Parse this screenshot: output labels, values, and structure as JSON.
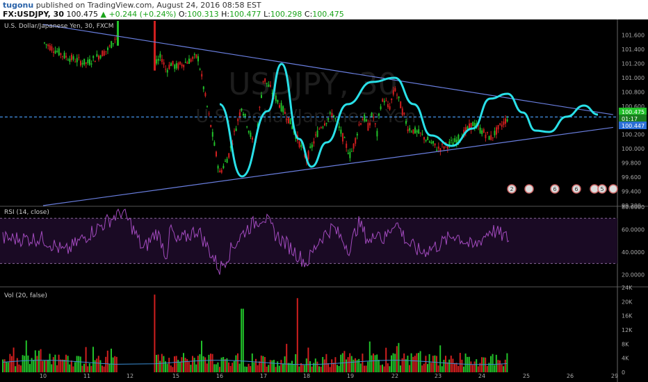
{
  "header": {
    "author": "tugonu",
    "published": "published on TradingView.com, August 24, 2016 08:58 EST",
    "symbol": "FX:USDJPY, 30",
    "last": "100.475",
    "change": "▲ +0.244 (+0.24%)",
    "open_label": "O:",
    "open": "100.313",
    "high_label": "H:",
    "high": "100.477",
    "low_label": "L:",
    "low": "100.298",
    "close_label": "C:",
    "close": "100.475"
  },
  "price_pane": {
    "title": "U.S. Dollar/Japanese Yen, 30, FXCM",
    "watermark_symbol": "USDJPY, 30",
    "watermark_name": "U.S. Dollar/Japanese Yen",
    "price_badge": "100.475",
    "countdown_badge": "01:17",
    "dashed_badge": "100.447",
    "badge_color": "#22c22a"
  },
  "rsi_pane": {
    "title": "RSI (14, close)"
  },
  "vol_pane": {
    "title": "Vol (20, false)"
  },
  "colors": {
    "up": "#22c22a",
    "down": "#d01f1f",
    "trendline": "#6a7fe0",
    "wave": "#29e0e8",
    "rsi": "#a34bbf",
    "vol_ma": "#3b8fd6"
  },
  "chart_data": [
    {
      "type": "candlestick",
      "title": "U.S. Dollar/Japanese Yen, 30, FXCM",
      "ylim": [
        99.2,
        101.8
      ],
      "y_ticks": [
        "101.600",
        "101.400",
        "101.200",
        "101.000",
        "100.800",
        "100.600",
        "100.400",
        "100.200",
        "100.000",
        "99.800",
        "99.600",
        "99.400",
        "99.200"
      ],
      "x_ticks": [
        "10",
        "11",
        "12",
        "15",
        "16",
        "17",
        "18",
        "19",
        "22",
        "23",
        "24",
        "25",
        "26",
        "29"
      ],
      "path_points_x": [
        10,
        10.5,
        11,
        11.5,
        11.8,
        12.5,
        12.7,
        13,
        13.5,
        14,
        14.5,
        15,
        15.5,
        16,
        16.2,
        16.5,
        16.8,
        17,
        17.3,
        17.6,
        18,
        18.3,
        18.6,
        19,
        19.3,
        19.6,
        19.9,
        20.2,
        20.5,
        20.8,
        21,
        21.3,
        21.6,
        22,
        22.3,
        22.6,
        23,
        23.4,
        23.8,
        24.2,
        24.6,
        24.9,
        25.2,
        25.5,
        25.8,
        26.2,
        26.5
      ],
      "path_points_close": [
        101.5,
        101.3,
        101.2,
        101.4,
        101.7,
        101.25,
        101.05,
        101.2,
        101.3,
        101.1,
        101.2,
        101.15,
        101.3,
        99.65,
        99.9,
        100.6,
        100.0,
        101.0,
        100.7,
        100.4,
        99.85,
        100.3,
        100.5,
        99.9,
        100.1,
        100.35,
        100.45,
        100.3,
        100.5,
        100.2,
        100.6,
        100.7,
        100.55,
        100.85,
        100.3,
        100.2,
        100.0,
        100.1,
        100.35,
        100.15,
        100.45,
        100.2,
        100.3,
        100.35,
        100.15,
        100.4,
        100.475
      ],
      "trendlines": [
        {
          "name": "upper",
          "points": [
            [
              10,
              101.75
            ],
            [
              28.9,
              100.48
            ]
          ]
        },
        {
          "name": "lower",
          "points": [
            [
              10,
              99.2
            ],
            [
              28.9,
              100.3
            ]
          ]
        },
        {
          "name": "dashed",
          "points": [
            [
              10,
              100.447
            ],
            [
              29,
              100.447
            ]
          ]
        }
      ],
      "events": [
        "2",
        "",
        "6",
        "6",
        "",
        "5",
        ""
      ]
    },
    {
      "type": "line",
      "title": "RSI (14, close)",
      "ylim": [
        10,
        80
      ],
      "y_ticks": [
        "80.0000",
        "60.0000",
        "40.0000",
        "20.0000"
      ],
      "bands": [
        70,
        30
      ],
      "points_x": [
        10,
        10.5,
        11,
        11.5,
        11.8,
        12.5,
        13,
        13.5,
        14,
        14.5,
        15,
        15.5,
        16,
        16.3,
        16.6,
        17,
        17.3,
        17.6,
        18,
        18.3,
        18.6,
        19,
        19.3,
        19.6,
        20,
        20.4,
        20.8,
        21.2,
        21.6,
        22,
        22.3,
        22.6,
        23,
        23.4,
        23.8,
        24.2,
        24.6,
        25,
        25.4,
        25.8,
        26.2,
        26.5
      ],
      "values": [
        52,
        40,
        55,
        68,
        76,
        42,
        58,
        50,
        36,
        62,
        48,
        60,
        25,
        45,
        60,
        72,
        55,
        45,
        30,
        52,
        62,
        42,
        58,
        66,
        55,
        48,
        62,
        50,
        58,
        68,
        48,
        40,
        46,
        56,
        44,
        60,
        52,
        44,
        58,
        46,
        60,
        66
      ]
    },
    {
      "type": "bar",
      "title": "Vol (20, false)",
      "ylim": [
        0,
        24000
      ],
      "y_ticks": [
        "24K",
        "20K",
        "16K",
        "12K",
        "8K",
        "4K",
        "0"
      ]
    }
  ]
}
